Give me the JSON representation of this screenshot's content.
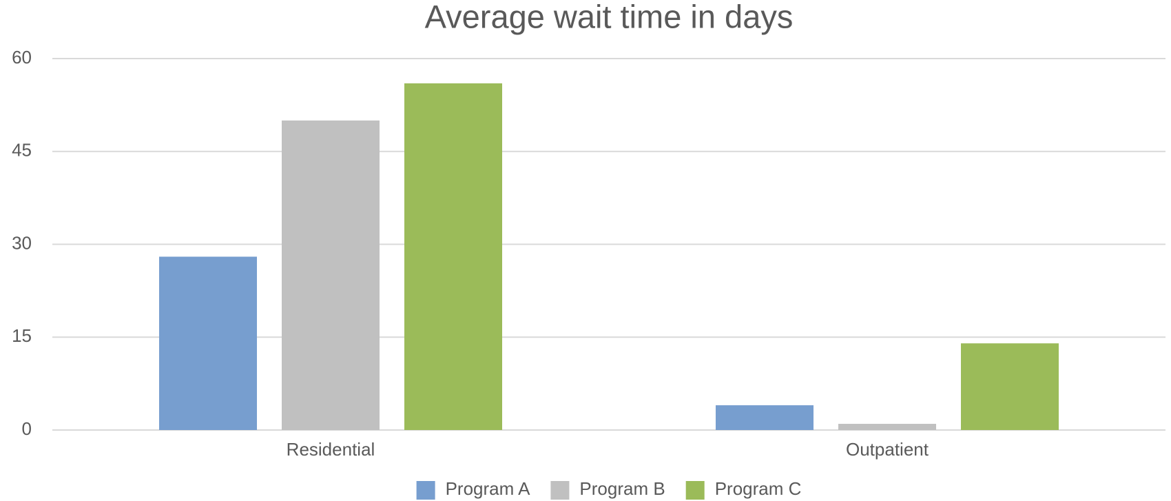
{
  "chart_data": {
    "type": "bar",
    "title": "Average wait time in days",
    "categories": [
      "Residential",
      "Outpatient"
    ],
    "series": [
      {
        "name": "Program A",
        "color": "#779ecf",
        "values": [
          28,
          4
        ]
      },
      {
        "name": "Program B",
        "color": "#c0c0c0",
        "values": [
          50,
          1
        ]
      },
      {
        "name": "Program C",
        "color": "#9bbb59",
        "values": [
          56,
          14
        ]
      }
    ],
    "ylim": [
      0,
      60
    ],
    "yticks": [
      0,
      15,
      30,
      45,
      60
    ],
    "grid": true,
    "legend": "bottom"
  }
}
